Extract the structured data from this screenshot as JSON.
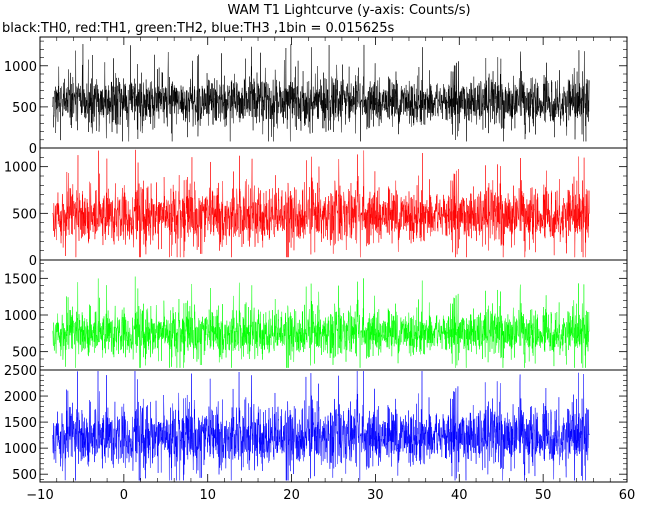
{
  "title": "WAM T1 Lightcurve (y-axis: Counts/s)",
  "subtitle": "black:TH0, red:TH1, green:TH2, blue:TH3 ,1bin = 0.015625s",
  "chart_data": {
    "type": "line",
    "title": "WAM T1 Lightcurve (y-axis: Counts/s)",
    "subtitle": "black:TH0, red:TH1, green:TH2, blue:TH3 ,1bin = 0.015625s",
    "xlabel": "",
    "ylabel": "",
    "bin_size_s": 0.015625,
    "xlim": [
      -10,
      60
    ],
    "x_data_range": [
      -8.5,
      55.5
    ],
    "x_ticks": [
      -10,
      0,
      10,
      20,
      30,
      40,
      50,
      60
    ],
    "x_tick_labels": [
      "−10",
      "0",
      "10",
      "20",
      "30",
      "40",
      "50",
      "60"
    ],
    "grid": false,
    "legend": "none",
    "panels": [
      {
        "name": "TH0",
        "color": "#000000",
        "ylim": [
          0,
          1350
        ],
        "y_ticks": [
          0,
          500,
          1000
        ],
        "y_tick_labels": [
          "0",
          "500",
          "1000"
        ],
        "mean": 560,
        "std": 150,
        "min_observed": 80,
        "max_observed": 1320
      },
      {
        "name": "TH1",
        "color": "#ff0000",
        "ylim": [
          0,
          1200
        ],
        "y_ticks": [
          0,
          500,
          1000
        ],
        "y_tick_labels": [
          "0",
          "500",
          "1000"
        ],
        "mean": 480,
        "std": 150,
        "min_observed": 30,
        "max_observed": 1180
      },
      {
        "name": "TH2",
        "color": "#00ff00",
        "ylim": [
          250,
          1750
        ],
        "y_ticks": [
          500,
          1000,
          1500
        ],
        "y_tick_labels": [
          "500",
          "1000",
          "1500"
        ],
        "mean": 760,
        "std": 160,
        "min_observed": 280,
        "max_observed": 1720
      },
      {
        "name": "TH3",
        "color": "#0000ff",
        "ylim": [
          350,
          2500
        ],
        "y_ticks": [
          500,
          1000,
          1500,
          2000,
          2500
        ],
        "y_tick_labels": [
          "500",
          "1000",
          "1500",
          "2000",
          "2500"
        ],
        "mean": 1230,
        "std": 290,
        "min_observed": 380,
        "max_observed": 2480
      }
    ]
  }
}
